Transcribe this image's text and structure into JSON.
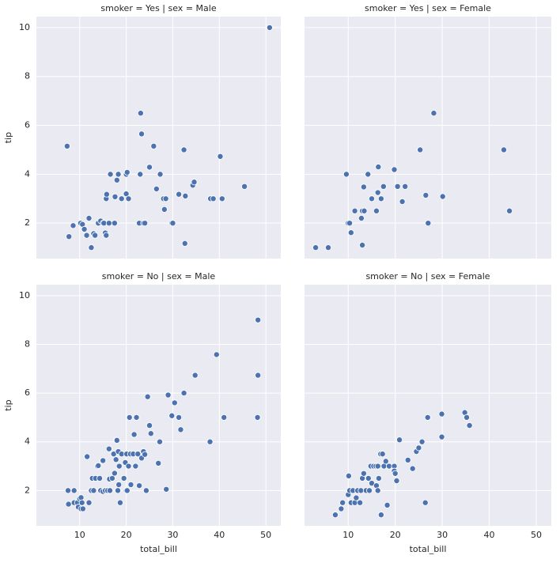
{
  "chart_data": [
    {
      "type": "scatter",
      "title": "smoker = Yes | sex = Male",
      "ylabel": "tip",
      "color": "#4c72b0",
      "grid": true,
      "xlim": [
        0.7,
        53.2
      ],
      "ylim": [
        0.55,
        10.45
      ],
      "xticks": [
        10,
        20,
        30,
        40,
        50
      ],
      "yticks": [
        2,
        4,
        6,
        8,
        10
      ],
      "x": [
        7.3,
        7.7,
        8.6,
        10.2,
        10.6,
        11,
        11.5,
        12,
        12.5,
        13,
        13.3,
        14,
        14.5,
        15,
        15.2,
        15.5,
        15.7,
        15.7,
        15.8,
        16.3,
        16.6,
        17.5,
        17.6,
        18,
        18.3,
        19,
        20,
        20.2,
        20,
        20.5,
        22.8,
        23,
        23.1,
        23.3,
        23.7,
        24,
        25,
        25.9,
        26.5,
        27.3,
        28,
        28.2,
        28.5,
        29.8,
        30,
        31.3,
        32.4,
        32.6,
        32.7,
        34.3,
        34.6,
        38.1,
        38.7,
        40.2,
        40.6,
        45.4,
        50.8
      ],
      "values": [
        5.15,
        1.45,
        1.9,
        2,
        1.95,
        1.75,
        1.5,
        2.2,
        1,
        1.57,
        1.5,
        2,
        2.09,
        2,
        2,
        1.6,
        1.5,
        3,
        3.18,
        2,
        4,
        2,
        3.08,
        3.76,
        4,
        3,
        4,
        4.08,
        3.2,
        3,
        2,
        4,
        6.5,
        5.65,
        2,
        2,
        4.29,
        5.15,
        3.4,
        4,
        3,
        2.56,
        3,
        2,
        2,
        3.18,
        5,
        1.17,
        3.11,
        3.55,
        3.68,
        3,
        3,
        4.73,
        3,
        3.5,
        10
      ]
    },
    {
      "type": "scatter",
      "title": "smoker = Yes | sex = Female",
      "color": "#4c72b0",
      "grid": true,
      "xlim": [
        0.7,
        53.2
      ],
      "ylim": [
        0.55,
        10.45
      ],
      "xticks": [
        10,
        20,
        30,
        40,
        50
      ],
      "yticks": [
        2,
        4,
        6,
        8,
        10
      ],
      "x": [
        3.07,
        5.75,
        9.6,
        10,
        10.3,
        10.6,
        11.4,
        12.8,
        13,
        13,
        13.3,
        13.4,
        14.2,
        15,
        16,
        16.3,
        16.4,
        17,
        17.5,
        19.8,
        20.5,
        21.5,
        22.1,
        25.3,
        26.5,
        27,
        28.2,
        30.1,
        43.1,
        44.3
      ],
      "values": [
        1,
        1,
        4,
        2,
        2,
        1.61,
        2.5,
        2.2,
        1.1,
        2.5,
        3.48,
        2.5,
        4,
        3,
        2.5,
        3.25,
        4.3,
        3,
        3.5,
        4.19,
        3.5,
        2.88,
        3.5,
        5,
        3.14,
        2,
        6.5,
        3.09,
        5,
        2.5
      ]
    },
    {
      "type": "scatter",
      "title": "smoker = No | sex = Male",
      "xlabel": "total_bill",
      "ylabel": "tip",
      "color": "#4c72b0",
      "grid": true,
      "xlim": [
        0.7,
        53.2
      ],
      "ylim": [
        0.55,
        10.45
      ],
      "xticks": [
        10,
        20,
        30,
        40,
        50
      ],
      "yticks": [
        2,
        4,
        6,
        8,
        10
      ],
      "x": [
        7.5,
        7.6,
        8.8,
        8.8,
        9.5,
        9.7,
        10,
        10.3,
        10.3,
        10.5,
        10.7,
        11.6,
        12,
        12.5,
        12.7,
        13,
        13.4,
        13.8,
        14,
        14.3,
        14.5,
        15,
        15,
        15.5,
        16,
        16.3,
        16.4,
        16.5,
        17,
        17.3,
        17.5,
        17.8,
        17.9,
        18,
        18.2,
        18.3,
        18.4,
        18.5,
        18.7,
        19,
        19.5,
        19.8,
        20,
        20.1,
        20.2,
        20.5,
        20.7,
        20.9,
        21,
        21.5,
        21.7,
        22,
        22.2,
        22.5,
        22.8,
        23.3,
        23.7,
        24,
        24.3,
        24.6,
        25,
        25.3,
        26.9,
        27.2,
        28.6,
        29,
        29.8,
        30.4,
        31.3,
        31.7,
        32.4,
        34.8,
        38,
        39.4,
        41,
        48.2,
        48.3,
        48.3
      ],
      "values": [
        2,
        1.44,
        1.5,
        2,
        1.5,
        1.32,
        1.66,
        1.71,
        1.25,
        1.5,
        1.25,
        3.39,
        1.5,
        2,
        2.5,
        2,
        2.5,
        3,
        3.02,
        2.5,
        2,
        1.96,
        3.23,
        2,
        2,
        3.71,
        2.47,
        2,
        2.5,
        3.5,
        2.71,
        3.27,
        4.08,
        4.06,
        2,
        3.6,
        2.24,
        3,
        1.5,
        3.5,
        2.5,
        3.15,
        2,
        3.5,
        2,
        3,
        5,
        3.5,
        2.24,
        3.5,
        4.3,
        3,
        5,
        3.5,
        2.2,
        3.33,
        3.6,
        3.48,
        2,
        5.85,
        4.67,
        4.34,
        3.12,
        4,
        2.05,
        5.92,
        5.07,
        5.6,
        5,
        4.5,
        6,
        6.73,
        4,
        7.58,
        5,
        5,
        6.73,
        9
      ]
    },
    {
      "type": "scatter",
      "title": "smoker = No | sex = Female",
      "xlabel": "total_bill",
      "color": "#4c72b0",
      "grid": true,
      "xlim": [
        0.7,
        53.2
      ],
      "ylim": [
        0.55,
        10.45
      ],
      "xticks": [
        10,
        20,
        30,
        40,
        50
      ],
      "yticks": [
        2,
        4,
        6,
        8,
        10
      ],
      "x": [
        7.25,
        8.5,
        8.8,
        10,
        10.3,
        10.1,
        10.6,
        11,
        11.4,
        11.7,
        12,
        12.5,
        12.7,
        13,
        13.3,
        13.8,
        14.3,
        14.5,
        14.8,
        15,
        15.4,
        15.9,
        16,
        16.3,
        16.5,
        16.3,
        16.9,
        17,
        17.3,
        17.6,
        18,
        18.3,
        18.7,
        19.8,
        19.8,
        20,
        20.3,
        20.9,
        22.7,
        23.7,
        24.5,
        25,
        25.7,
        26.4,
        26.9,
        29.9,
        29.9,
        34.8,
        35.2,
        35.8
      ],
      "values": [
        1,
        1.25,
        1.5,
        1.83,
        2,
        2.6,
        1.5,
        2,
        1.5,
        1.7,
        2,
        1.5,
        2,
        2.5,
        2.7,
        2,
        2.5,
        2,
        3,
        2.3,
        3,
        3,
        2.2,
        2,
        2.5,
        3,
        3.5,
        1,
        3.5,
        3,
        3.2,
        1.4,
        3,
        3,
        2.8,
        2.7,
        2.4,
        4.08,
        3.25,
        2.9,
        3.6,
        3.75,
        4,
        1.5,
        5,
        5.14,
        4.2,
        5.2,
        5,
        4.67
      ]
    }
  ]
}
